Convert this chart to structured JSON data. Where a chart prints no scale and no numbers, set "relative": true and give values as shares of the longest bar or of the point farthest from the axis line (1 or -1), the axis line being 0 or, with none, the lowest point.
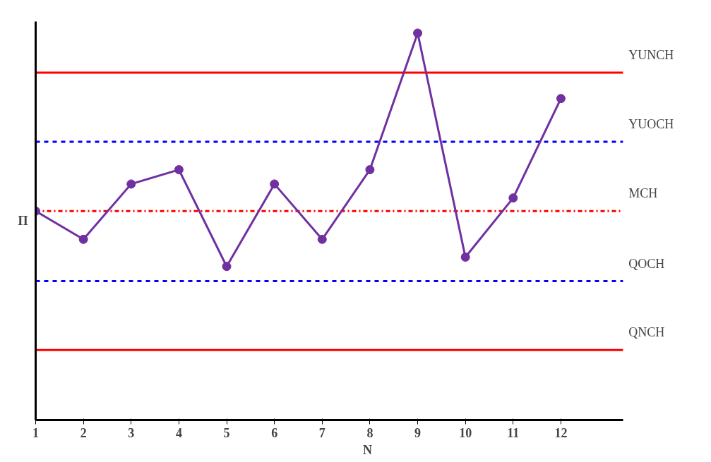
{
  "chart_data": {
    "type": "line",
    "relative": true,
    "xlabel": "N",
    "ylabel": "Π",
    "x": [
      1,
      2,
      3,
      4,
      5,
      6,
      7,
      8,
      9,
      10,
      11,
      12
    ],
    "xlim": [
      1,
      13.3
    ],
    "xticks": [
      1,
      2,
      3,
      4,
      5,
      6,
      7,
      8,
      9,
      10,
      11,
      12
    ],
    "series": [
      {
        "color": "#7030a0",
        "values": [
          0.54,
          0.467,
          0.61,
          0.647,
          0.397,
          0.61,
          0.467,
          0.647,
          1,
          0.421,
          0.574,
          0.831
        ]
      }
    ],
    "marker": "circle",
    "line_style": "solid",
    "grid": false,
    "ref_lines": [
      {
        "axis": "y",
        "value": 0.898,
        "label": "YUNCH",
        "color": "#ff0000",
        "line_style": "solid"
      },
      {
        "axis": "y",
        "value": 0.719,
        "label": "YUOCH",
        "color": "#0000ff",
        "line_style": "dashed"
      },
      {
        "axis": "y",
        "value": 0.54,
        "label": "MCH",
        "color": "#ff0000",
        "line_style": "dashdot"
      },
      {
        "axis": "y",
        "value": 0.359,
        "label": "QOCH",
        "color": "#0000ff",
        "line_style": "dashed"
      },
      {
        "axis": "y",
        "value": 0.181,
        "label": "QNCH",
        "color": "#ff0000",
        "line_style": "solid"
      }
    ]
  }
}
